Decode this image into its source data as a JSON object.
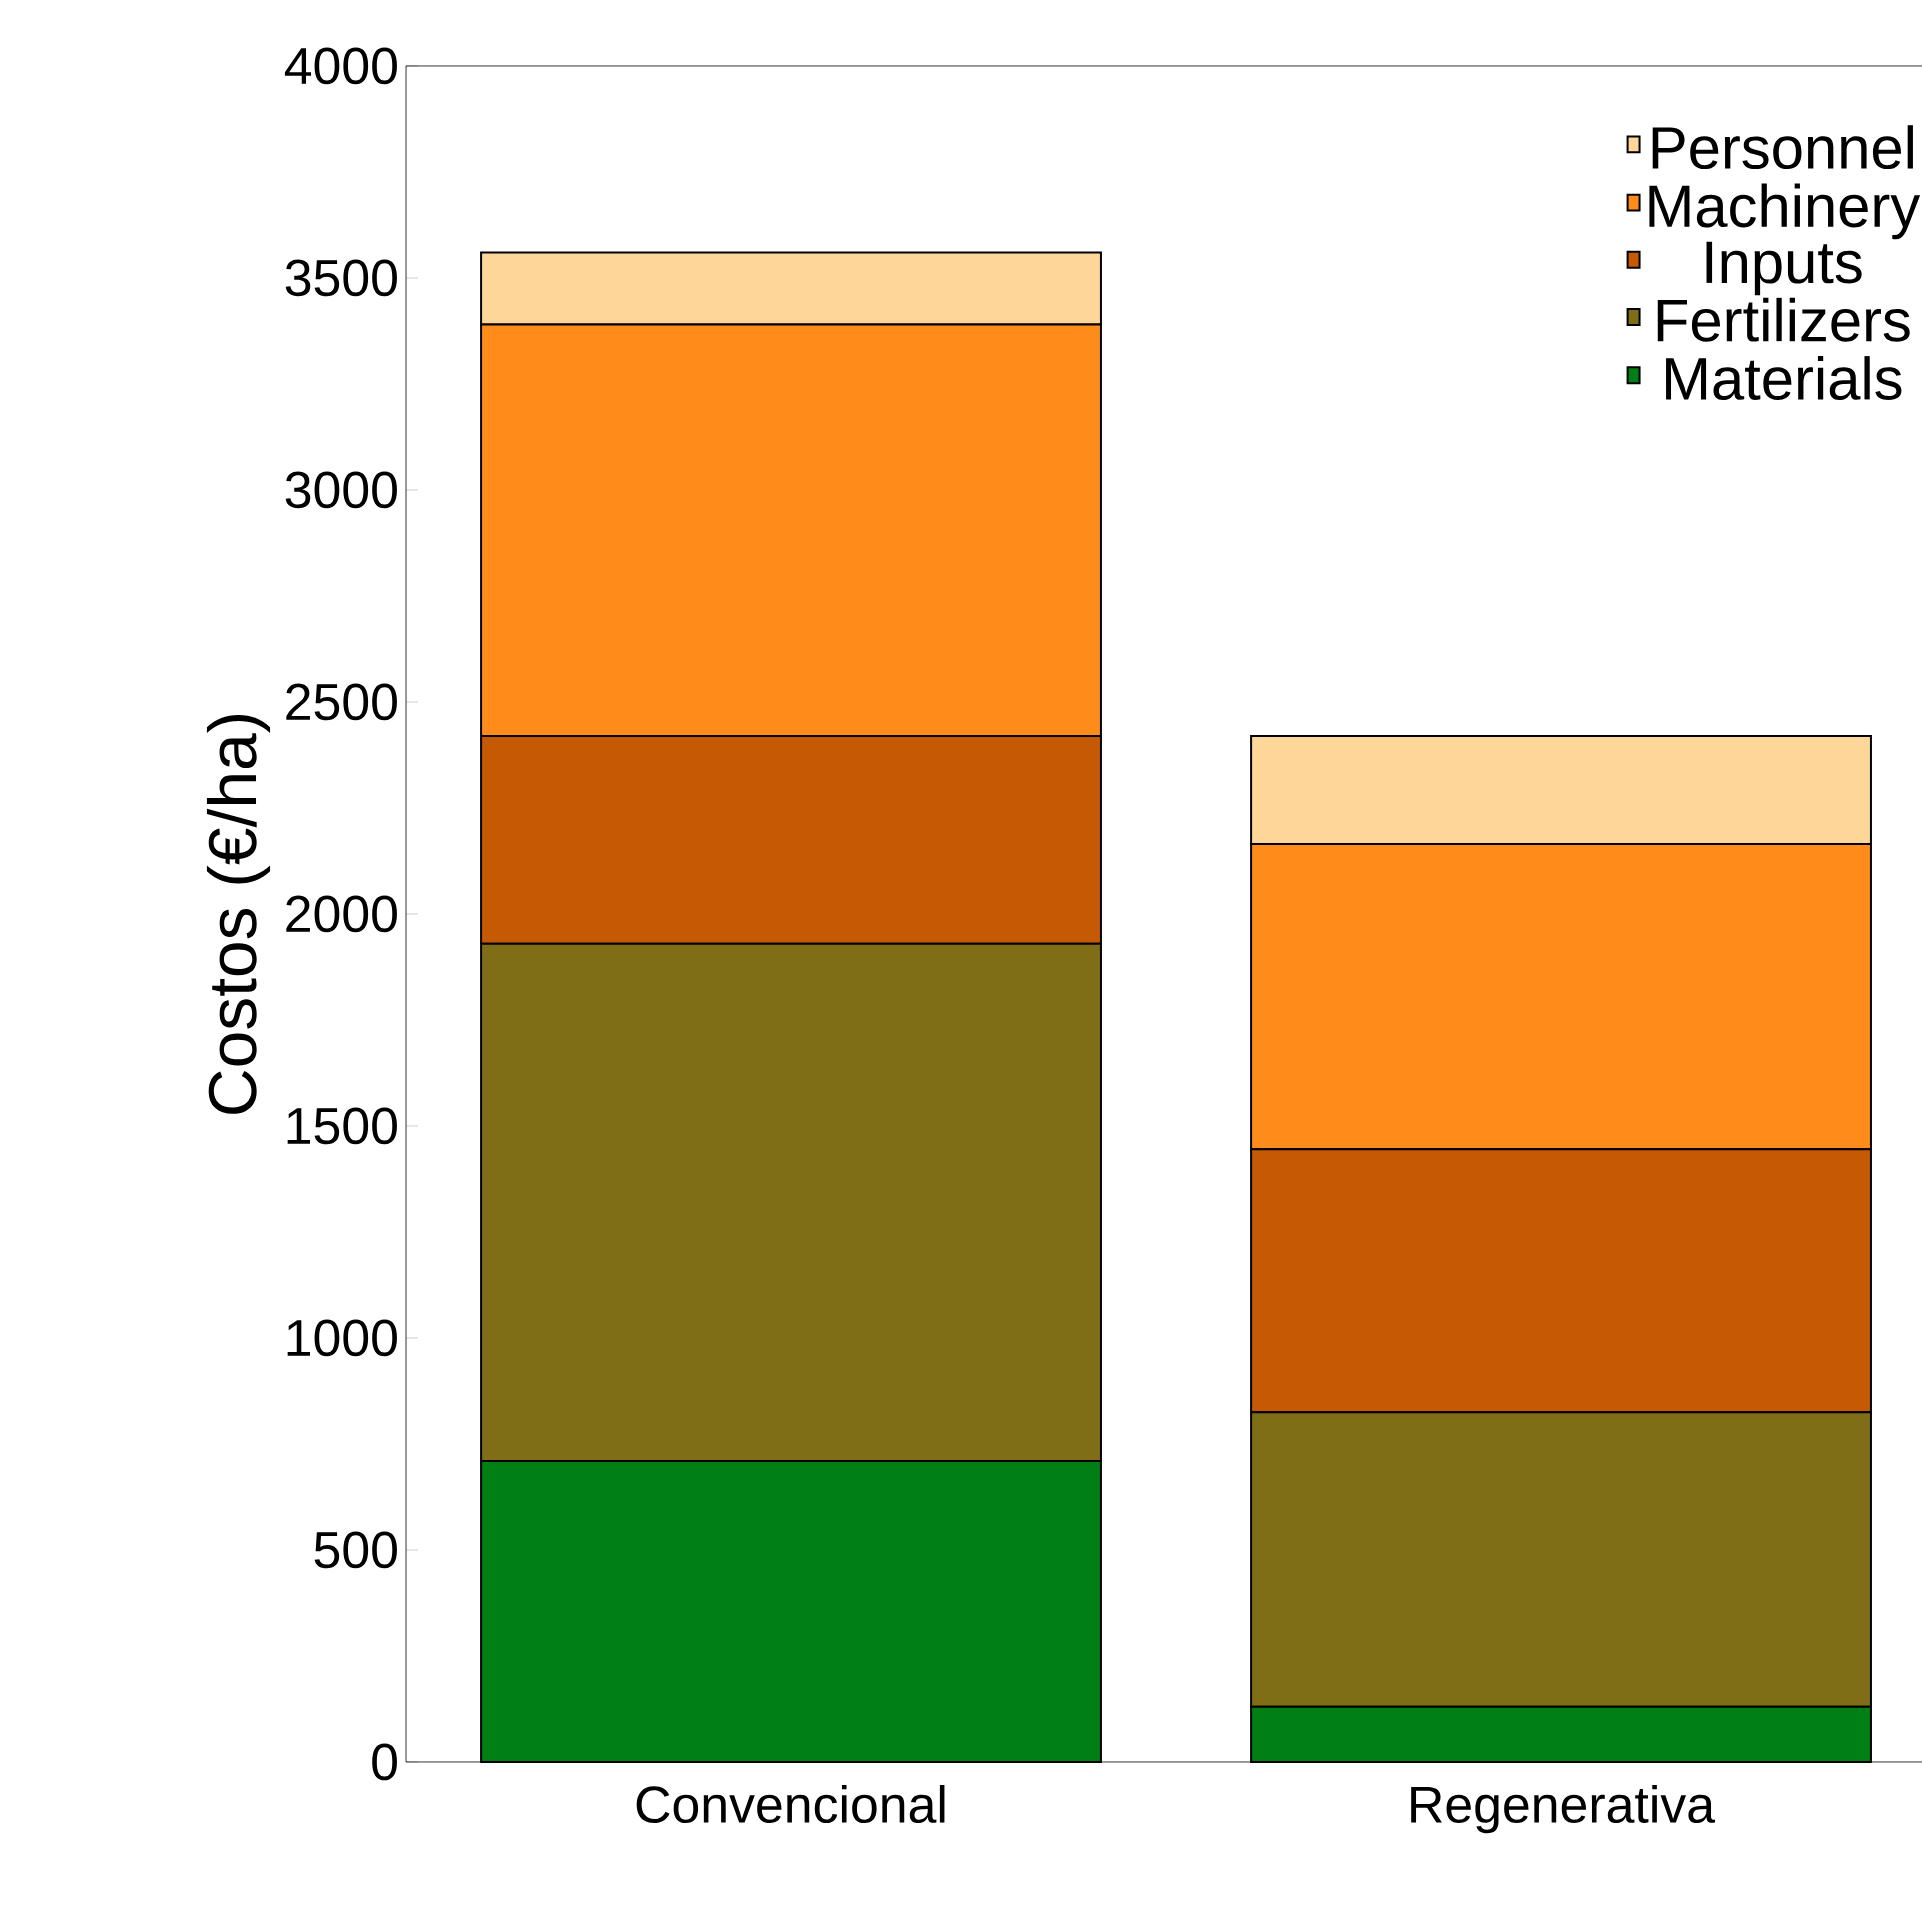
{
  "chart_data": {
    "type": "bar",
    "stacked": true,
    "ylabel": "Costos (€/ha)",
    "categories": [
      "Convencional",
      "Regenerativa"
    ],
    "series": [
      {
        "name": "Materials",
        "color": "#007f14",
        "values": [
          710,
          130
        ]
      },
      {
        "name": "Fertilizers",
        "color": "#7f6e16",
        "values": [
          1220,
          695
        ]
      },
      {
        "name": "Inputs",
        "color": "#c65a04",
        "values": [
          490,
          620
        ]
      },
      {
        "name": "Machinery",
        "color": "#ff8c1a",
        "values": [
          970,
          720
        ]
      },
      {
        "name": "Personnel",
        "color": "#ffd699",
        "values": [
          170,
          255
        ]
      }
    ],
    "ylim": [
      0,
      4000
    ],
    "yticks": [
      0,
      500,
      1000,
      1500,
      2000,
      2500,
      3000,
      3500,
      4000
    ],
    "grid": false,
    "legend": "top right"
  }
}
